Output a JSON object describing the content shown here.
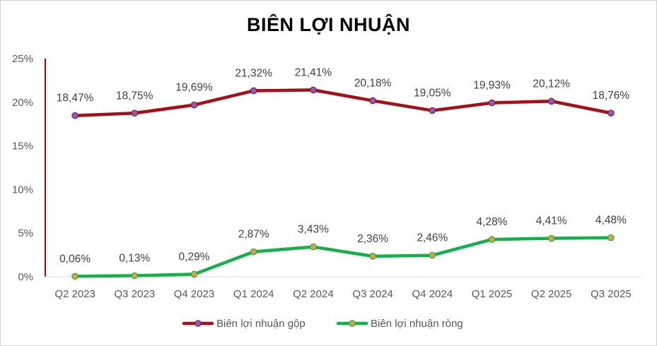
{
  "chart_data": {
    "type": "line",
    "title": "BIÊN LỢI NHUẬN",
    "categories": [
      "Q2 2023",
      "Q3 2023",
      "Q4 2023",
      "Q1 2024",
      "Q2 2024",
      "Q3 2024",
      "Q4 2024",
      "Q1 2025",
      "Q2 2025",
      "Q3 2025"
    ],
    "y_ticks": [
      "0%",
      "5%",
      "10%",
      "15%",
      "20%",
      "25%"
    ],
    "ylim": [
      0,
      25
    ],
    "grid": false,
    "legend_position": "bottom",
    "series": [
      {
        "name": "Biên lợi nhuận gộp",
        "values": [
          18.47,
          18.75,
          19.69,
          21.32,
          21.41,
          20.18,
          19.05,
          19.93,
          20.12,
          18.76
        ],
        "labels": [
          "18,47%",
          "18,75%",
          "19,69%",
          "21,32%",
          "21,41%",
          "20,18%",
          "19,05%",
          "19,93%",
          "20,12%",
          "18,76%"
        ],
        "line_color": "#a50f15",
        "marker_color": "#7b61c9"
      },
      {
        "name": "Biên lợi nhuận ròng",
        "values": [
          0.06,
          0.13,
          0.29,
          2.87,
          3.43,
          2.36,
          2.46,
          4.28,
          4.41,
          4.48
        ],
        "labels": [
          "0,06%",
          "0,13%",
          "0,29%",
          "2,87%",
          "3,43%",
          "2,36%",
          "2,46%",
          "4,28%",
          "4,41%",
          "4,48%"
        ],
        "line_color": "#14b04a",
        "marker_color": "#e0a040"
      }
    ],
    "axis_color": "#c00000"
  }
}
